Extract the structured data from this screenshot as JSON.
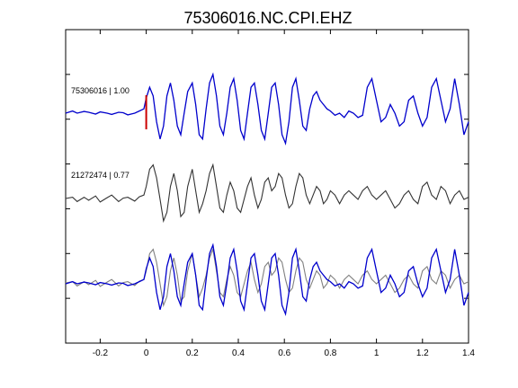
{
  "chart_data": {
    "type": "line",
    "title": "75306016.NC.CPI.EHZ",
    "xlabel": "",
    "ylabel": "",
    "xlim": [
      -0.35,
      1.4
    ],
    "x_ticks": [
      -0.2,
      0,
      0.2,
      0.4,
      0.6,
      0.8,
      1,
      1.2,
      1.4
    ],
    "x_tick_labels": [
      "-0.2",
      "0",
      "0.2",
      "0.4",
      "0.6",
      "0.8",
      "1",
      "1.2",
      "1.4"
    ],
    "y_ticks_left": 6,
    "y_ticks_right": 6,
    "grid": false,
    "pick_marker": {
      "x": 0,
      "color": "#cc0000"
    },
    "colors": {
      "primary": "#0000cc",
      "secondary": "#333333",
      "overlay_gray": "#808080"
    },
    "traces": [
      {
        "label": "75306016 | 1.00",
        "color": "#0000cc",
        "role": "upper"
      },
      {
        "label": "21272474 | 0.77",
        "color": "#333333",
        "role": "middle"
      },
      {
        "label": "",
        "color": "overlay",
        "role": "lower"
      }
    ],
    "x": [
      -0.35,
      -0.32,
      -0.3,
      -0.27,
      -0.25,
      -0.22,
      -0.2,
      -0.17,
      -0.15,
      -0.12,
      -0.1,
      -0.08,
      -0.05,
      -0.03,
      -0.01,
      0,
      0.015,
      0.03,
      0.045,
      0.06,
      0.075,
      0.09,
      0.105,
      0.12,
      0.135,
      0.15,
      0.165,
      0.18,
      0.2,
      0.215,
      0.23,
      0.245,
      0.26,
      0.275,
      0.29,
      0.305,
      0.32,
      0.335,
      0.35,
      0.365,
      0.38,
      0.395,
      0.41,
      0.425,
      0.44,
      0.455,
      0.47,
      0.485,
      0.5,
      0.515,
      0.53,
      0.545,
      0.56,
      0.575,
      0.59,
      0.605,
      0.62,
      0.635,
      0.65,
      0.665,
      0.68,
      0.695,
      0.71,
      0.725,
      0.74,
      0.755,
      0.77,
      0.785,
      0.8,
      0.82,
      0.84,
      0.86,
      0.88,
      0.9,
      0.92,
      0.94,
      0.96,
      0.98,
      1,
      1.02,
      1.04,
      1.06,
      1.08,
      1.1,
      1.12,
      1.14,
      1.16,
      1.18,
      1.2,
      1.22,
      1.24,
      1.26,
      1.28,
      1.3,
      1.32,
      1.34,
      1.36,
      1.38,
      1.4
    ],
    "series": [
      {
        "values": [
          0,
          0.05,
          0,
          0.04,
          0.02,
          -0.02,
          0.03,
          0.0,
          -0.03,
          0.02,
          0.01,
          -0.04,
          0,
          0.05,
          0.1,
          0.35,
          0.6,
          0.4,
          -0.2,
          -0.6,
          -0.3,
          0.4,
          0.7,
          0.3,
          -0.3,
          -0.5,
          0.0,
          0.5,
          0.7,
          0.2,
          -0.5,
          -0.6,
          0.1,
          0.7,
          0.9,
          0.4,
          -0.3,
          -0.5,
          0,
          0.6,
          0.8,
          0.3,
          -0.4,
          -0.6,
          0.0,
          0.6,
          0.7,
          0.2,
          -0.4,
          -0.6,
          0.0,
          0.6,
          0.7,
          0.2,
          -0.5,
          -0.7,
          -0.2,
          0.6,
          0.8,
          0.3,
          -0.3,
          -0.4,
          0.1,
          0.4,
          0.5,
          0.3,
          0.2,
          0.1,
          0.05,
          -0.05,
          0.0,
          -0.1,
          0.05,
          0.0,
          -0.1,
          -0.05,
          0.6,
          0.8,
          0.3,
          -0.2,
          -0.1,
          0.2,
          0.0,
          -0.3,
          -0.2,
          0.3,
          0.4,
          0.0,
          -0.3,
          -0.1,
          0.6,
          0.8,
          0.3,
          -0.2,
          0.1,
          0.8,
          0.2,
          -0.5,
          -0.2
        ]
      },
      {
        "values": [
          0.02,
          0.05,
          -0.05,
          0.05,
          -0.02,
          0.08,
          -0.06,
          0.04,
          0.1,
          -0.05,
          0.03,
          0.05,
          -0.04,
          0.06,
          0.1,
          0.3,
          0.7,
          0.8,
          0.5,
          0.0,
          -0.5,
          -0.3,
          0.3,
          0.6,
          0.2,
          -0.4,
          -0.3,
          0.3,
          0.7,
          0.2,
          -0.3,
          -0.1,
          0.2,
          0.6,
          0.8,
          0.3,
          -0.2,
          -0.3,
          0.1,
          0.4,
          0.2,
          -0.2,
          -0.3,
          0.0,
          0.3,
          0.5,
          0.1,
          -0.2,
          0.0,
          0.4,
          0.5,
          0.2,
          0.3,
          0.6,
          0.5,
          0.1,
          -0.2,
          -0.1,
          0.3,
          0.6,
          0.5,
          0.1,
          -0.1,
          0.1,
          0.3,
          0.2,
          -0.1,
          0.0,
          0.2,
          0.1,
          -0.1,
          0.1,
          0.2,
          0.1,
          0.0,
          0.2,
          0.3,
          0.1,
          0.0,
          0.1,
          0.2,
          0.0,
          -0.2,
          -0.1,
          0.1,
          0.2,
          0.0,
          -0.1,
          0.3,
          0.4,
          0.1,
          0.0,
          0.3,
          0.2,
          -0.1,
          0.1,
          0.2,
          0.0,
          0.05
        ]
      }
    ]
  }
}
